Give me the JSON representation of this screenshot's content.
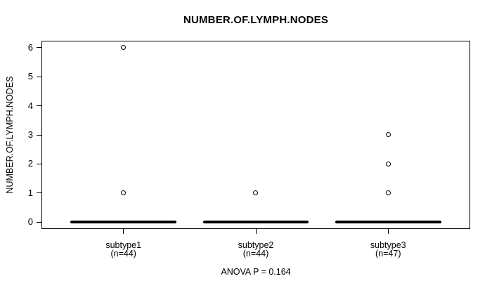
{
  "chart_data": {
    "type": "boxplot",
    "title": "NUMBER.OF.LYMPH.NODES",
    "ylabel": "NUMBER.OF.LYMPH.NODES",
    "xlabel": "",
    "annotation": "ANOVA P = 0.164",
    "ylim": [
      -0.24,
      6.24
    ],
    "yticks": [
      0,
      1,
      2,
      3,
      4,
      5,
      6
    ],
    "xlim": [
      0.38,
      3.62
    ],
    "box_width_units": 0.8,
    "grid": false,
    "legend": false,
    "groups": [
      {
        "position": 1,
        "label": "subtype1",
        "n_label": "(n=44)",
        "n": 44,
        "median": 0,
        "q1": 0,
        "q3": 0,
        "whisker_low": 0,
        "whisker_high": 0,
        "outliers": [
          1,
          6
        ]
      },
      {
        "position": 2,
        "label": "subtype2",
        "n_label": "(n=44)",
        "n": 44,
        "median": 0,
        "q1": 0,
        "q3": 0,
        "whisker_low": 0,
        "whisker_high": 0,
        "outliers": [
          1
        ]
      },
      {
        "position": 3,
        "label": "subtype3",
        "n_label": "(n=47)",
        "n": 47,
        "median": 0,
        "q1": 0,
        "q3": 0,
        "whisker_low": 0,
        "whisker_high": 0,
        "outliers": [
          1,
          2,
          3
        ]
      }
    ],
    "colors": {
      "foreground": "#000000",
      "background": "#ffffff"
    }
  }
}
